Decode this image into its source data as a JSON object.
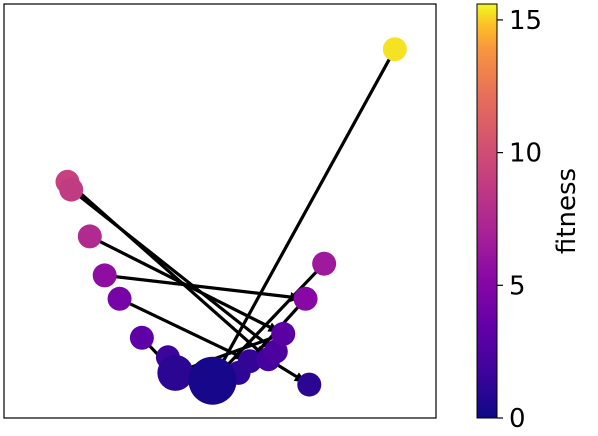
{
  "chart_data": {
    "type": "scatter",
    "subtype": "directed-graph",
    "title": "",
    "xlabel": "",
    "ylabel": "",
    "axis_ticks": "none",
    "grid": false,
    "nodes": [
      {
        "x": 0.48,
        "y": 0.07,
        "fitness": 0.3,
        "size": 3
      },
      {
        "x": 0.38,
        "y": 0.09,
        "fitness": 1.0,
        "size": 2
      },
      {
        "x": 0.55,
        "y": 0.09,
        "fitness": 1.2,
        "size": 1
      },
      {
        "x": 0.74,
        "y": 0.06,
        "fitness": 1.0,
        "size": 1
      },
      {
        "x": 0.58,
        "y": 0.12,
        "fitness": 1.3,
        "size": 1
      },
      {
        "x": 0.36,
        "y": 0.13,
        "fitness": 1.6,
        "size": 1
      },
      {
        "x": 0.63,
        "y": 0.125,
        "fitness": 2.0,
        "size": 1
      },
      {
        "x": 0.65,
        "y": 0.145,
        "fitness": 2.4,
        "size": 1
      },
      {
        "x": 0.67,
        "y": 0.19,
        "fitness": 3.0,
        "size": 1
      },
      {
        "x": 0.29,
        "y": 0.18,
        "fitness": 3.2,
        "size": 1
      },
      {
        "x": 0.23,
        "y": 0.28,
        "fitness": 4.4,
        "size": 1
      },
      {
        "x": 0.19,
        "y": 0.34,
        "fitness": 5.6,
        "size": 1
      },
      {
        "x": 0.73,
        "y": 0.28,
        "fitness": 5.2,
        "size": 1
      },
      {
        "x": 0.78,
        "y": 0.37,
        "fitness": 6.4,
        "size": 1
      },
      {
        "x": 0.15,
        "y": 0.44,
        "fitness": 7.6,
        "size": 1
      },
      {
        "x": 0.09,
        "y": 0.58,
        "fitness": 9.2,
        "size": 1
      },
      {
        "x": 0.1,
        "y": 0.56,
        "fitness": 8.8,
        "size": 1
      },
      {
        "x": 0.97,
        "y": 0.92,
        "fitness": 15.3,
        "size": 1
      }
    ],
    "edges": [
      {
        "from": 17,
        "to": 0
      },
      {
        "from": 15,
        "to": 6
      },
      {
        "from": 16,
        "to": 7
      },
      {
        "from": 14,
        "to": 8
      },
      {
        "from": 11,
        "to": 12
      },
      {
        "from": 10,
        "to": 4
      },
      {
        "from": 9,
        "to": 1
      },
      {
        "from": 13,
        "to": 0
      },
      {
        "from": 5,
        "to": 0
      },
      {
        "from": 12,
        "to": 2
      },
      {
        "from": 8,
        "to": 1
      },
      {
        "from": 7,
        "to": 0
      },
      {
        "from": 6,
        "to": 3
      },
      {
        "from": 4,
        "to": 0
      },
      {
        "from": 2,
        "to": 0
      }
    ],
    "colorbar": {
      "label": "fitness",
      "colormap": "plasma",
      "range": [
        0,
        15.6
      ],
      "ticks": [
        0,
        5,
        10,
        15
      ],
      "tick_labels": [
        "0",
        "5",
        "10",
        "15"
      ]
    },
    "xlim": [
      0,
      1
    ],
    "ylim": [
      0,
      1
    ]
  }
}
